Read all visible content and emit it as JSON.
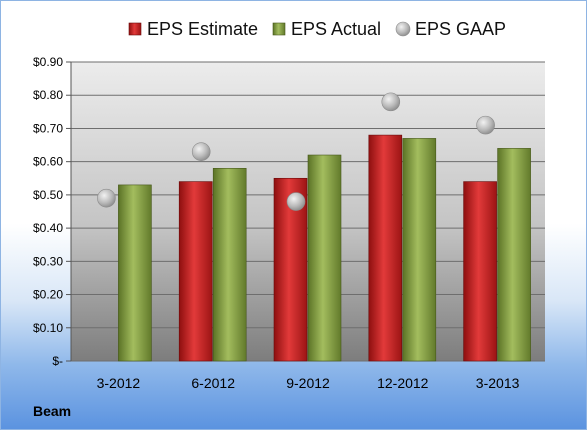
{
  "caption": "Beam",
  "chart_data": {
    "type": "bar",
    "categories": [
      "3-2012",
      "6-2012",
      "9-2012",
      "12-2012",
      "3-2013"
    ],
    "series": [
      {
        "name": "EPS Estimate",
        "kind": "bar",
        "color": "#cc2222",
        "values": [
          null,
          0.54,
          0.55,
          0.68,
          0.54
        ]
      },
      {
        "name": "EPS Actual",
        "kind": "bar",
        "color": "#7f9a3a",
        "values": [
          0.53,
          0.58,
          0.62,
          0.67,
          0.64
        ]
      },
      {
        "name": "EPS GAAP",
        "kind": "scatter",
        "color": "#b8b8b8",
        "values": [
          0.49,
          0.63,
          0.48,
          0.78,
          0.71
        ]
      }
    ],
    "yticks": [
      "$-",
      "$0.10",
      "$0.20",
      "$0.30",
      "$0.40",
      "$0.50",
      "$0.60",
      "$0.70",
      "$0.80",
      "$0.90"
    ],
    "ylim": [
      0,
      0.9
    ],
    "grid": true,
    "legend_position": "top"
  }
}
